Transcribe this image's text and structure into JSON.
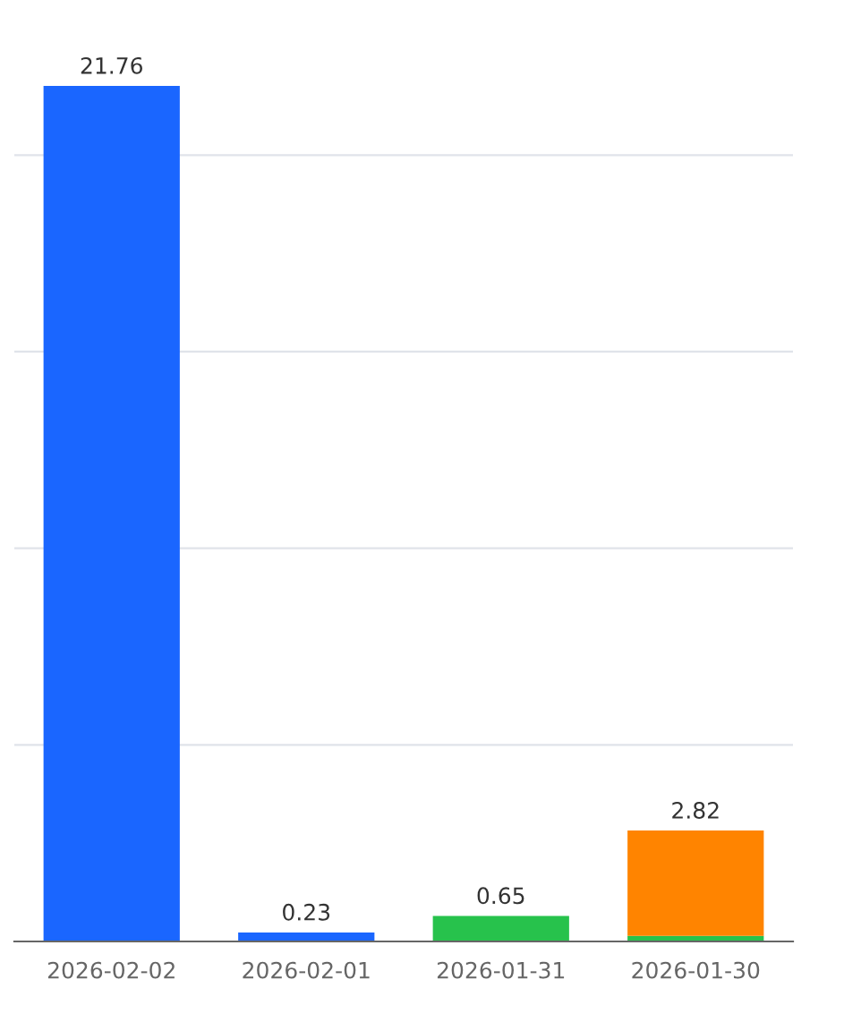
{
  "chart_data": {
    "type": "bar",
    "stacked": true,
    "categories": [
      "2026-02-02",
      "2026-02-01",
      "2026-01-31",
      "2026-01-30"
    ],
    "series": [
      {
        "color": "#1a66ff",
        "values": [
          21.76,
          0.23,
          null,
          null
        ],
        "value_labels": [
          "21.76",
          "0.23",
          null,
          null
        ]
      },
      {
        "color": "#27c24c",
        "values": [
          null,
          null,
          0.65,
          0.14
        ],
        "value_labels": [
          null,
          null,
          "0.65",
          null
        ]
      },
      {
        "color": "#ff8400",
        "values": [
          null,
          null,
          null,
          2.68
        ],
        "value_labels": [
          null,
          null,
          null,
          null
        ]
      }
    ],
    "totals": [
      null,
      null,
      null,
      "2.82"
    ],
    "grid": "y",
    "tick_labels": "x"
  }
}
